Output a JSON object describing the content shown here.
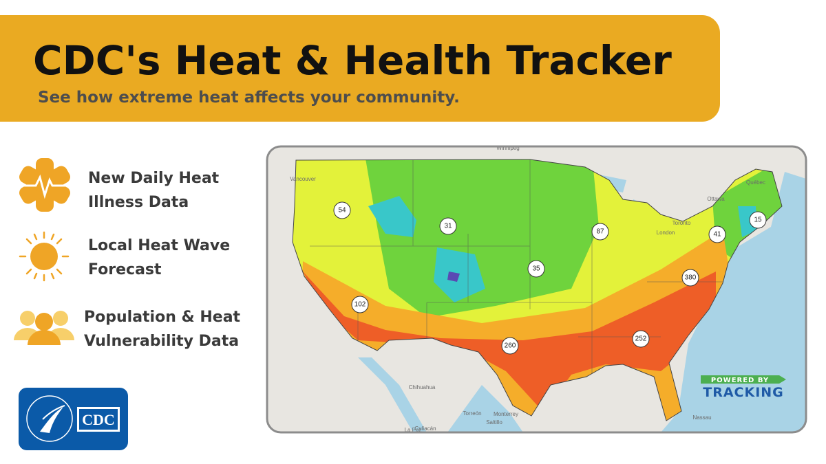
{
  "header": {
    "title": "CDC's Heat & Health Tracker",
    "subtitle": "See how extreme heat affects your community."
  },
  "features": [
    {
      "lines": [
        "New Daily Heat",
        "Illness Data"
      ]
    },
    {
      "lines": [
        "Local Heat Wave",
        "Forecast"
      ]
    },
    {
      "lines": [
        "Population & Heat",
        "Vulnerability Data"
      ]
    }
  ],
  "logo": {
    "text": "CDC"
  },
  "map": {
    "clusters": [
      54,
      31,
      87,
      41,
      15,
      35,
      380,
      102,
      260,
      252
    ],
    "place_labels": [
      "Winnipeg",
      "Vancouver",
      "Québec",
      "Ottawa",
      "Toronto",
      "London",
      "Chihuahua",
      "Torreón",
      "Monterrey",
      "Saltillo",
      "Culiacán",
      "La Paz",
      "Nassau"
    ],
    "badge": {
      "top": "POWERED BY",
      "bottom": "TRACKING"
    }
  }
}
